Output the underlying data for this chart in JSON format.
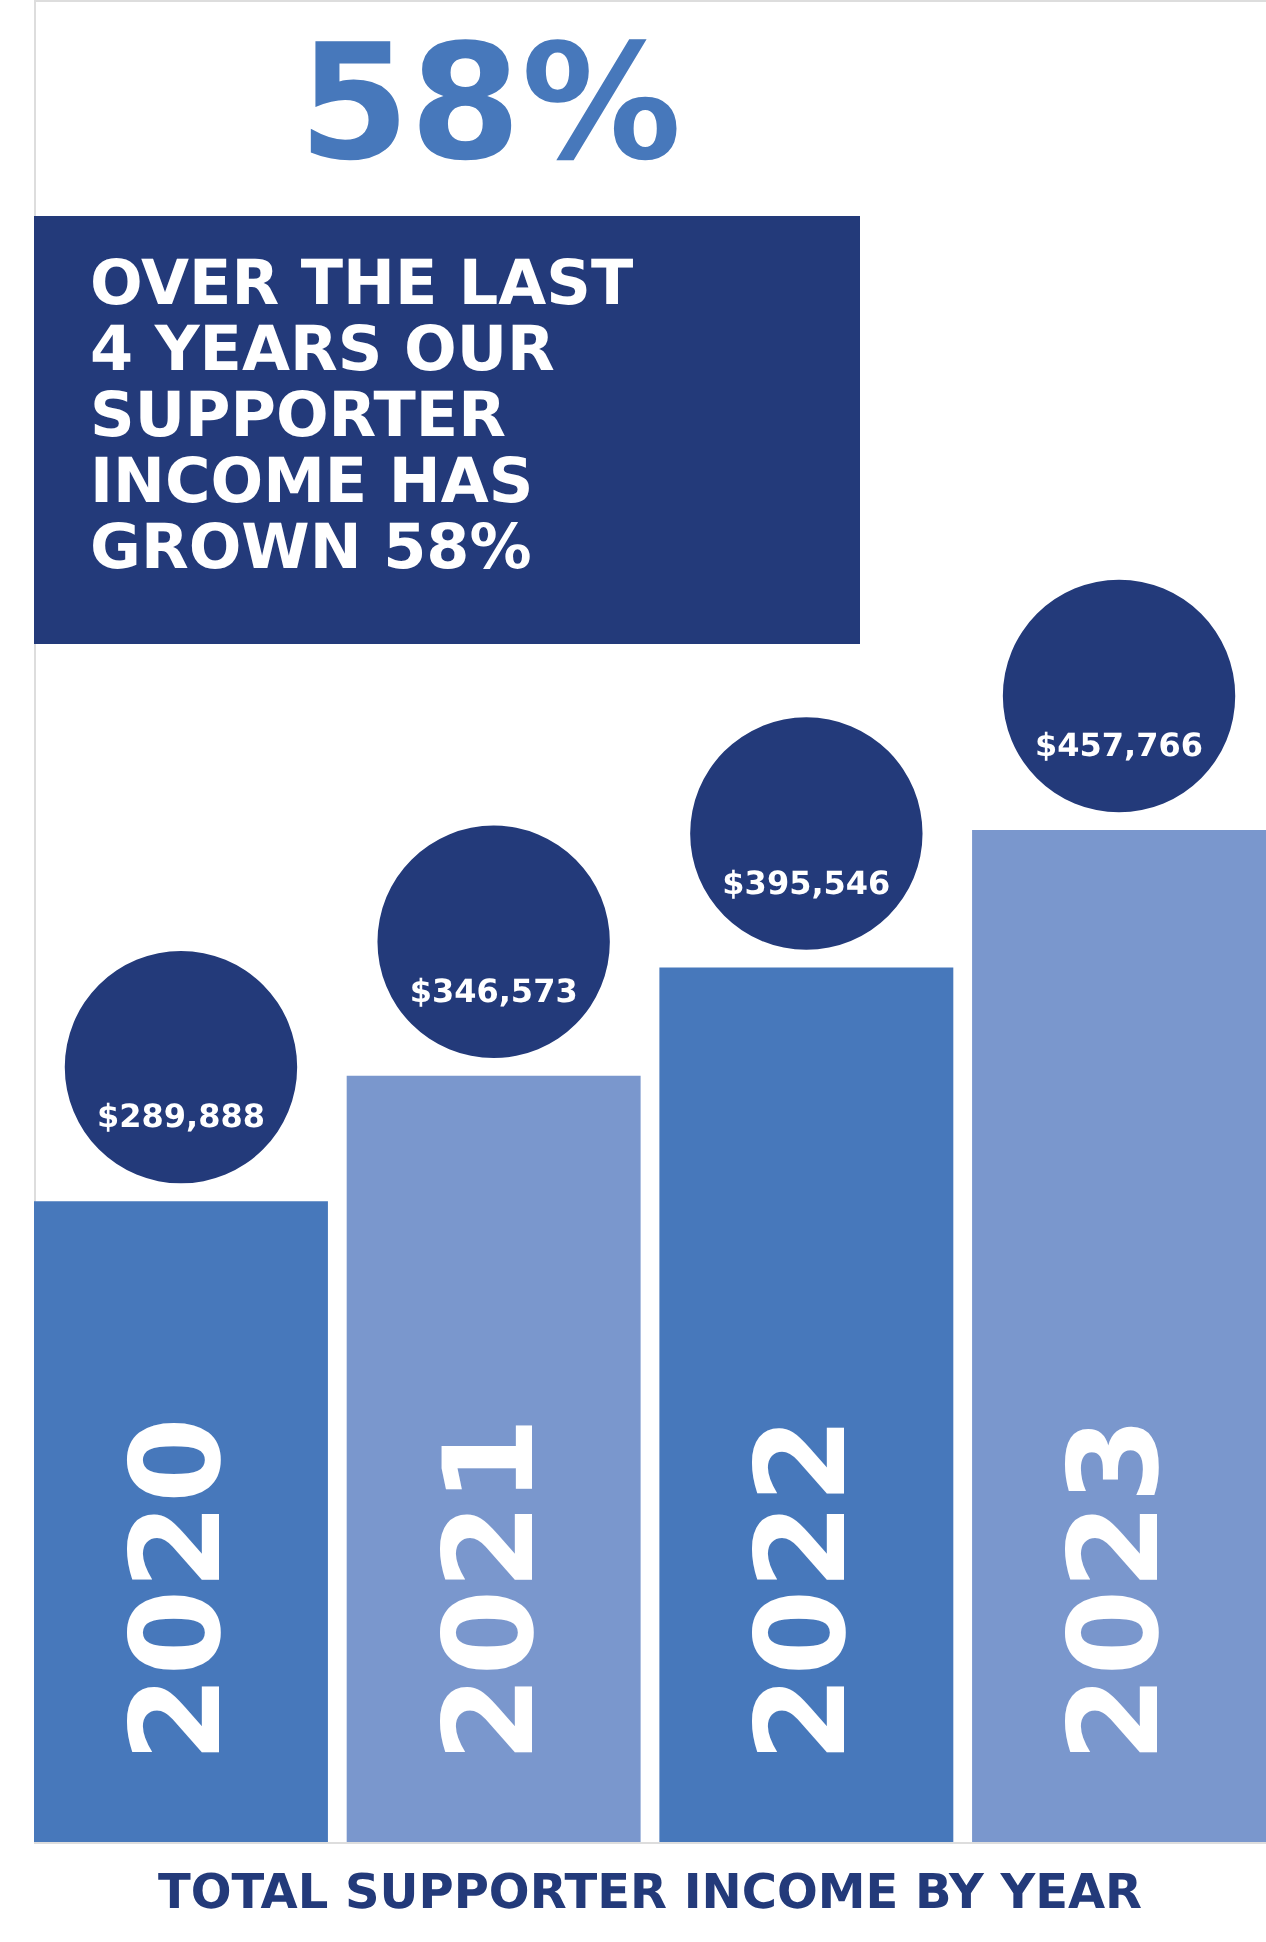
{
  "chart_data": {
    "type": "bar",
    "title": "TOTAL SUPPORTER INCOME BY YEAR",
    "categories": [
      "2020",
      "2021",
      "2022",
      "2023"
    ],
    "values": [
      289888,
      346573,
      395546,
      457766
    ],
    "colors": [
      "#4778bb",
      "#7a97cd",
      "#4778bb",
      "#7a97cd"
    ],
    "value_labels": [
      "$289,888",
      "$346,573",
      "$395,546",
      "$457,766"
    ],
    "annotations": [
      "58%",
      "OVER THE LAST 4 YEARS OUR SUPPORTER INCOME HAS GROWN 58%"
    ]
  }
}
